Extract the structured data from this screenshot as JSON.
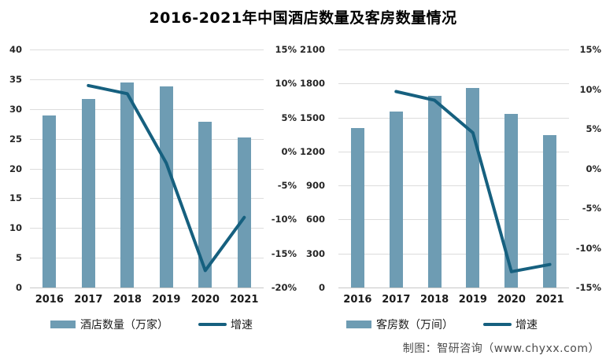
{
  "title": "2016-2021年中国酒店数量及客房数量情况",
  "footer": {
    "credit": "制图：智研咨询（www.chyxx.com）"
  },
  "colors": {
    "bar": "#6e9cb3",
    "line": "#16607f",
    "grid": "#dcdcdc",
    "axis_baseline": "#c7c7c7",
    "tick_text": "#262626",
    "footer_text": "#4d4d4d"
  },
  "chart_data": [
    {
      "type": "bar+line",
      "categories": [
        "2016",
        "2017",
        "2018",
        "2019",
        "2020",
        "2021"
      ],
      "series": [
        {
          "name": "酒店数量（万家）",
          "type": "bar",
          "axis": "left",
          "values": [
            28.9,
            31.7,
            34.4,
            33.8,
            27.9,
            25.2
          ]
        },
        {
          "name": "增速",
          "type": "line",
          "axis": "right",
          "values": [
            null,
            9.7,
            8.5,
            -1.7,
            -17.5,
            -9.7
          ]
        }
      ],
      "left_axis": {
        "min": 0,
        "max": 40,
        "step": 5,
        "ticks": [
          "40",
          "35",
          "30",
          "25",
          "20",
          "15",
          "10",
          "5",
          "0"
        ]
      },
      "right_axis": {
        "min": -20,
        "max": 15,
        "step": 5,
        "ticks": [
          "15%",
          "10%",
          "5%",
          "0%",
          "-5%",
          "-10%",
          "-15%",
          "-20%"
        ],
        "unit": "%"
      },
      "grid": "horizontal",
      "legend_position": "bottom"
    },
    {
      "type": "bar+line",
      "categories": [
        "2016",
        "2017",
        "2018",
        "2019",
        "2020",
        "2021"
      ],
      "series": [
        {
          "name": "客房数（万间）",
          "type": "bar",
          "axis": "left",
          "values": [
            1405,
            1550,
            1693,
            1762,
            1533,
            1347
          ]
        },
        {
          "name": "增速",
          "type": "line",
          "axis": "right",
          "values": [
            null,
            9.7,
            8.6,
            4.5,
            -13.0,
            -12.1
          ]
        }
      ],
      "left_axis": {
        "min": 0,
        "max": 2100,
        "step": 300,
        "ticks": [
          "2100",
          "1800",
          "1500",
          "1200",
          "900",
          "600",
          "300",
          "0"
        ]
      },
      "right_axis": {
        "min": -15,
        "max": 15,
        "step": 5,
        "ticks": [
          "15%",
          "10%",
          "5%",
          "0%",
          "-5%",
          "-10%",
          "-15%"
        ],
        "unit": "%"
      },
      "grid": "horizontal",
      "legend_position": "bottom"
    }
  ]
}
